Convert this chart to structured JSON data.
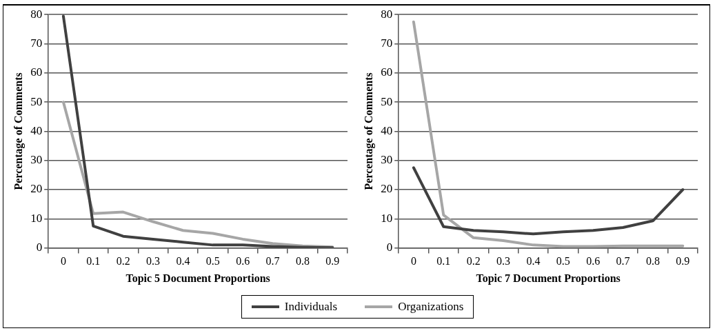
{
  "chart_data": [
    {
      "type": "line",
      "xlabel": "Topic 5 Document Proportions",
      "ylabel": "Percentage of Comments",
      "categories": [
        "0",
        "0.1",
        "0.2",
        "0.3",
        "0.4",
        "0.5",
        "0.6",
        "0.7",
        "0.8",
        "0.9"
      ],
      "series": [
        {
          "name": "Individuals",
          "color": "#404040",
          "values": [
            79.5,
            7.5,
            4,
            3,
            2,
            1,
            1,
            0.5,
            0.2,
            0.1
          ]
        },
        {
          "name": "Organizations",
          "color": "#a6a6a6",
          "values": [
            50,
            11.8,
            12.3,
            9,
            6,
            5,
            3,
            1.5,
            0.7,
            0.3
          ]
        }
      ],
      "ylim": [
        0,
        80
      ],
      "yticks": [
        0,
        10,
        20,
        30,
        40,
        50,
        60,
        70,
        80
      ],
      "grid": "y",
      "legend": "bottom",
      "marker": "none"
    },
    {
      "type": "line",
      "xlabel": "Topic 7 Document Proportions",
      "ylabel": "Percentage of Comments",
      "categories": [
        "0",
        "0.1",
        "0.2",
        "0.3",
        "0.4",
        "0.5",
        "0.6",
        "0.7",
        "0.8",
        "0.9"
      ],
      "series": [
        {
          "name": "Individuals",
          "color": "#404040",
          "values": [
            27.5,
            7.3,
            6,
            5.5,
            4.8,
            5.5,
            6,
            7,
            9.3,
            20
          ]
        },
        {
          "name": "Organizations",
          "color": "#a6a6a6",
          "values": [
            77.5,
            11.3,
            3.5,
            2.5,
            1,
            0.5,
            0.5,
            0.7,
            0.7,
            0.7
          ]
        }
      ],
      "ylim": [
        0,
        80
      ],
      "yticks": [
        0,
        10,
        20,
        30,
        40,
        50,
        60,
        70,
        80
      ],
      "grid": "y",
      "legend": "bottom",
      "marker": "none"
    }
  ]
}
